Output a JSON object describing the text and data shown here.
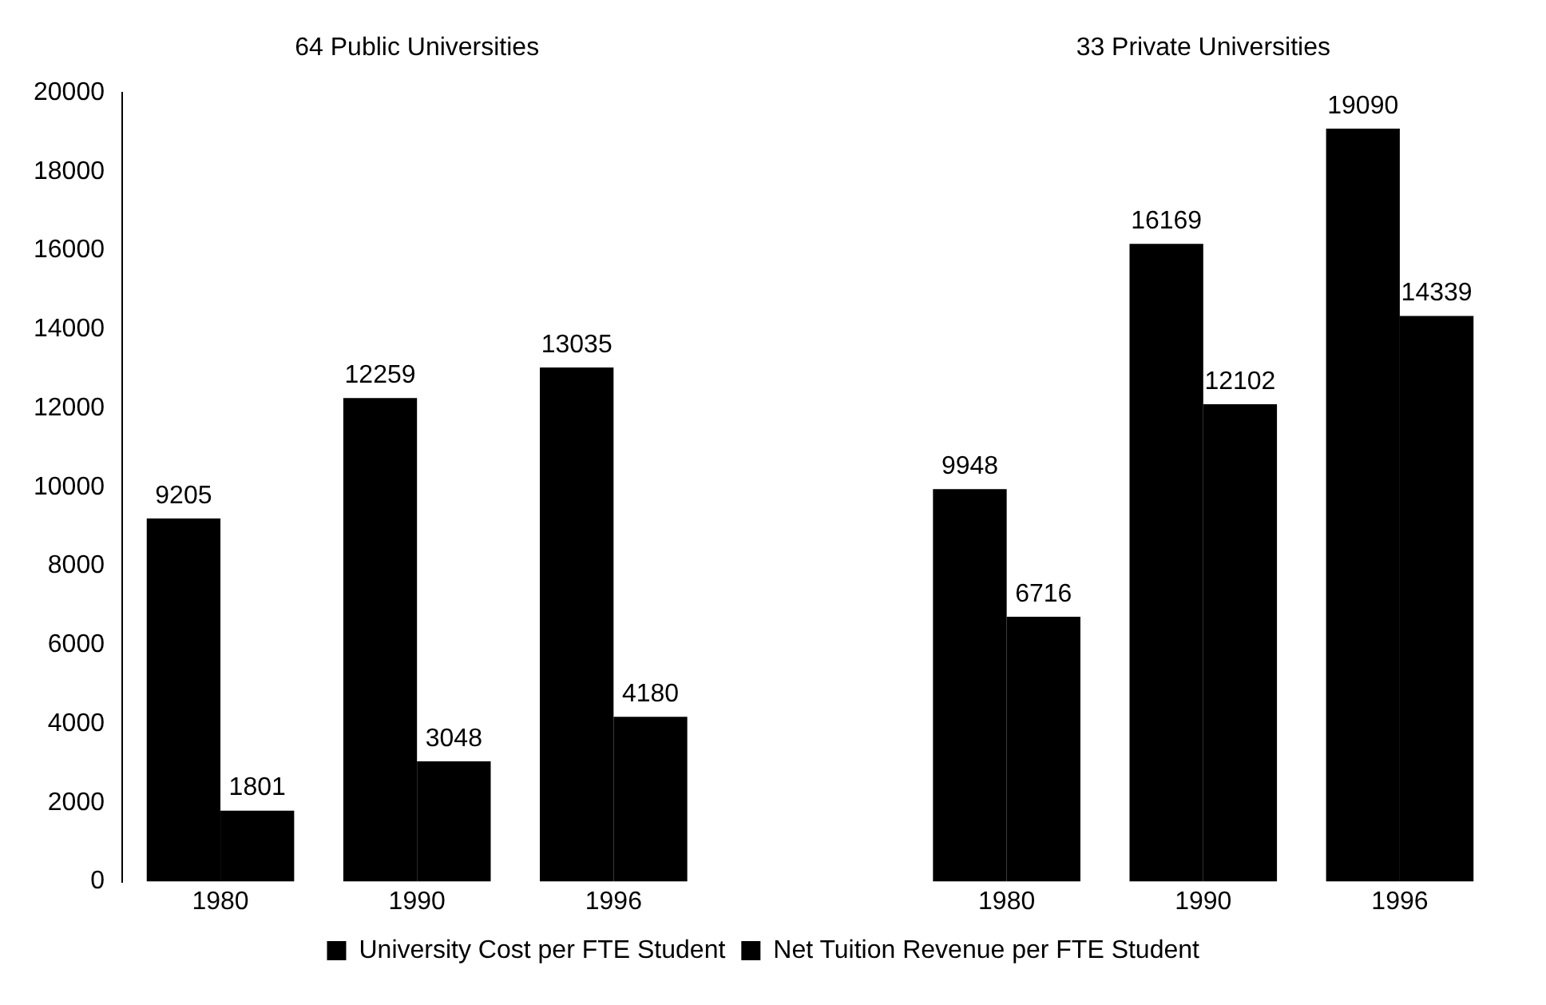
{
  "chart_data": {
    "type": "bar",
    "categories": [
      "1980",
      "1990",
      "1996",
      null,
      "1980",
      "1990",
      "1996"
    ],
    "series": [
      {
        "name": "University Cost per FTE Student",
        "color": "#000000",
        "values": [
          9205,
          12259,
          13035,
          null,
          9948,
          16169,
          19090
        ]
      },
      {
        "name": "Net Tuition Revenue per FTE Student",
        "color": "#000000",
        "values": [
          1801,
          3048,
          4180,
          null,
          6716,
          12102,
          14339
        ]
      }
    ],
    "ylim": [
      0,
      20000
    ],
    "yticks": [
      0,
      2000,
      4000,
      6000,
      8000,
      10000,
      12000,
      14000,
      16000,
      18000,
      20000
    ],
    "annotations": [
      "64 Public Universities",
      "33 Private Universities"
    ],
    "data_labels": true,
    "grid": false,
    "legend": "bottom"
  }
}
